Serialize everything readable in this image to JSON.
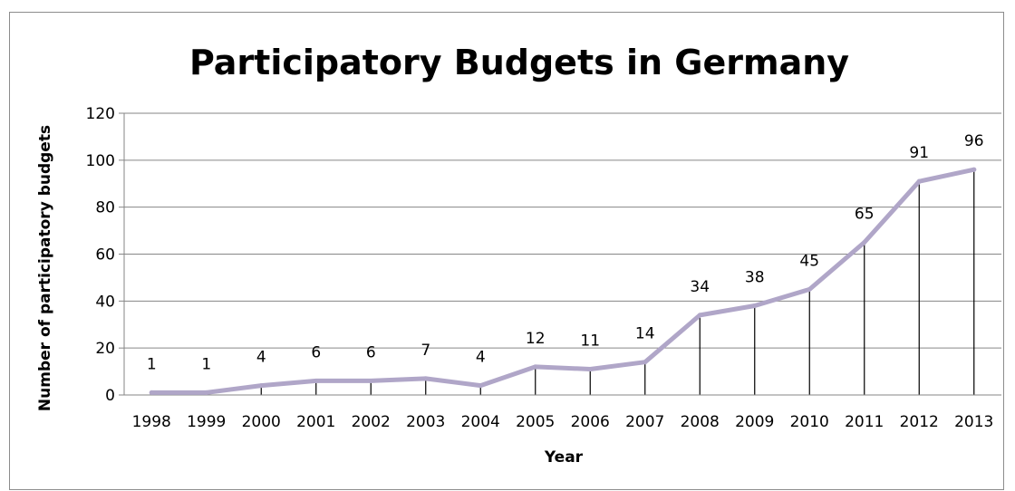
{
  "chart_data": {
    "type": "line",
    "title": "Participatory Budgets in Germany",
    "xlabel": "Year",
    "ylabel": "Number of participatory budgets",
    "categories": [
      "1998",
      "1999",
      "2000",
      "2001",
      "2002",
      "2003",
      "2004",
      "2005",
      "2006",
      "2007",
      "2008",
      "2009",
      "2010",
      "2011",
      "2012",
      "2013"
    ],
    "series": [
      {
        "values": [
          1,
          1,
          4,
          6,
          6,
          7,
          4,
          12,
          11,
          14,
          34,
          38,
          45,
          65,
          91,
          96
        ]
      }
    ],
    "ylim": [
      0,
      120
    ],
    "yticks": [
      "0",
      "20",
      "40",
      "60",
      "80",
      "100",
      "120"
    ],
    "grid": true,
    "drop_lines": true,
    "legend": "none",
    "colors": {
      "line": "#b0a6c8",
      "grid": "#868686",
      "axis": "#868686",
      "drop_line": "#000000"
    }
  }
}
